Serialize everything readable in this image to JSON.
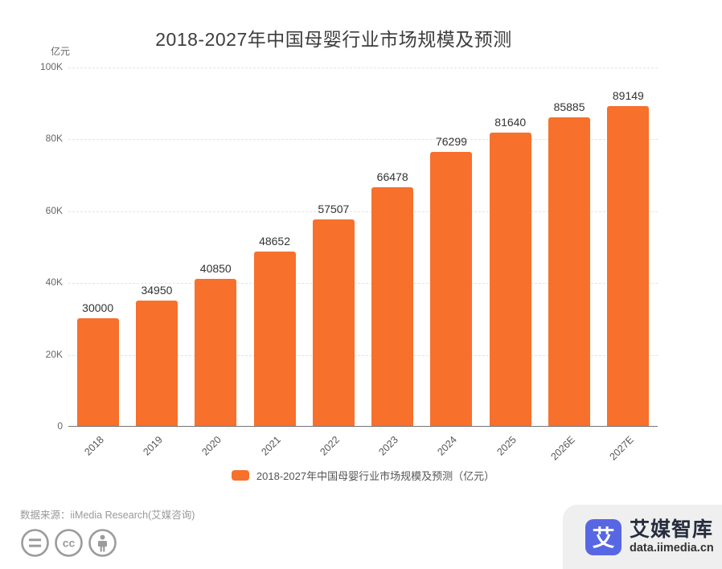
{
  "title": "2018-2027年中国母婴行业市场规模及预测",
  "unit_label": "亿元",
  "legend": {
    "label": "2018-2027年中国母婴行业市场规模及预测（亿元）",
    "swatch_color": "#F7702C"
  },
  "source": "数据来源：iiMedia Research(艾媒咨询)",
  "footer_icons": [
    "equals-license-icon",
    "creative-commons-icon",
    "attribution-person-icon"
  ],
  "brand": {
    "logo_char": "艾",
    "name": "艾媒智库",
    "site": "data.iimedia.cn",
    "logo_color": "#5767E4"
  },
  "colors": {
    "bar": "#F7702C",
    "gridline": "#e3e3e3",
    "axis": "#737373"
  },
  "chart_data": {
    "type": "bar",
    "title": "2018-2027年中国母婴行业市场规模及预测",
    "categories": [
      "2018",
      "2019",
      "2020",
      "2021",
      "2022",
      "2023",
      "2024",
      "2025",
      "2026E",
      "2027E"
    ],
    "values": [
      30000,
      34950,
      40850,
      48652,
      57507,
      66478,
      76299,
      81640,
      85885,
      89149
    ],
    "xlabel": "",
    "ylabel": "亿元",
    "ylim": [
      0,
      100000
    ],
    "yticks": [
      {
        "value": 0,
        "label": "0"
      },
      {
        "value": 20000,
        "label": "20K"
      },
      {
        "value": 40000,
        "label": "40K"
      },
      {
        "value": 60000,
        "label": "60K"
      },
      {
        "value": 80000,
        "label": "80K"
      },
      {
        "value": 100000,
        "label": "100K"
      }
    ],
    "grid": "horizontal-dashed",
    "legend_position": "bottom",
    "bar_color": "#F7702C",
    "value_labels": true
  }
}
